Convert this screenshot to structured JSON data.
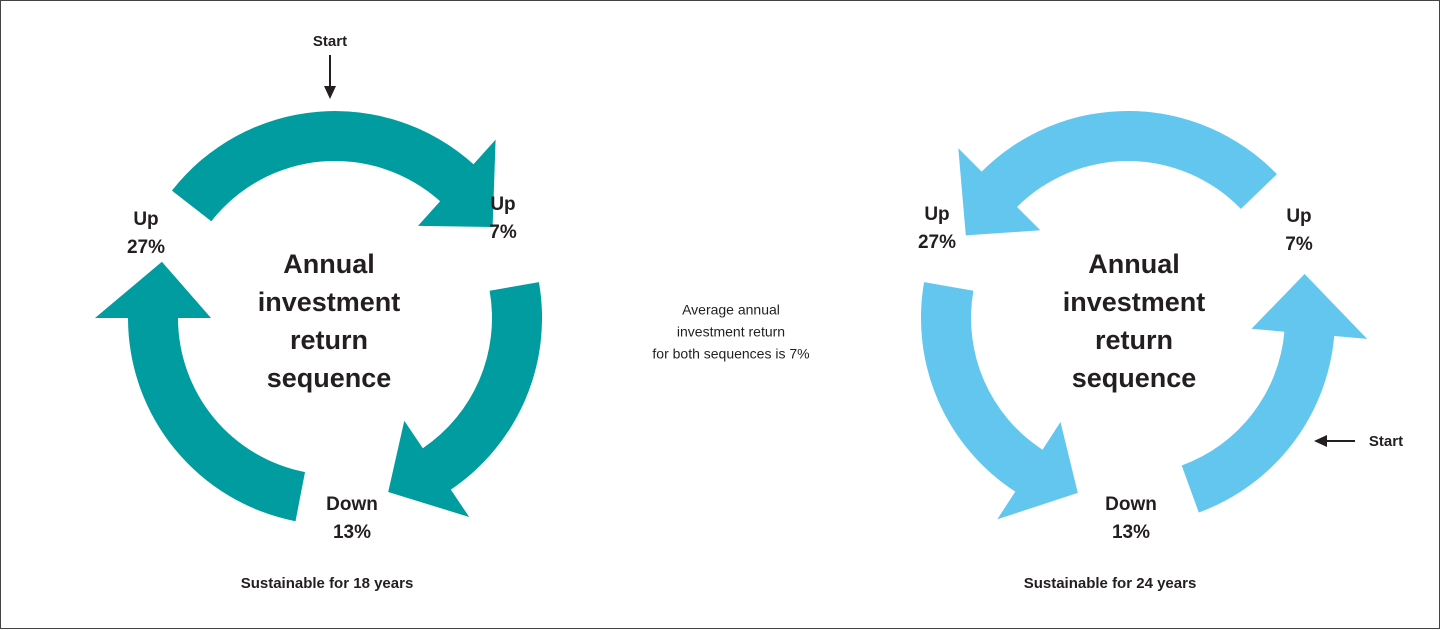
{
  "left": {
    "start": "Start",
    "center": [
      "Annual",
      "investment",
      "return",
      "sequence"
    ],
    "labels": [
      {
        "direction": "Up",
        "percent": "7%"
      },
      {
        "direction": "Down",
        "percent": "13%"
      },
      {
        "direction": "Up",
        "percent": "27%"
      }
    ],
    "caption": "Sustainable for 18 years"
  },
  "middle": {
    "note": [
      "Average annual",
      "investment return",
      "for both sequences is 7%"
    ]
  },
  "right": {
    "start": "Start",
    "center": [
      "Annual",
      "investment",
      "return",
      "sequence"
    ],
    "labels": [
      {
        "direction": "Up",
        "percent": "7%"
      },
      {
        "direction": "Down",
        "percent": "13%"
      },
      {
        "direction": "Up",
        "percent": "27%"
      }
    ],
    "caption": "Sustainable for 24 years"
  }
}
